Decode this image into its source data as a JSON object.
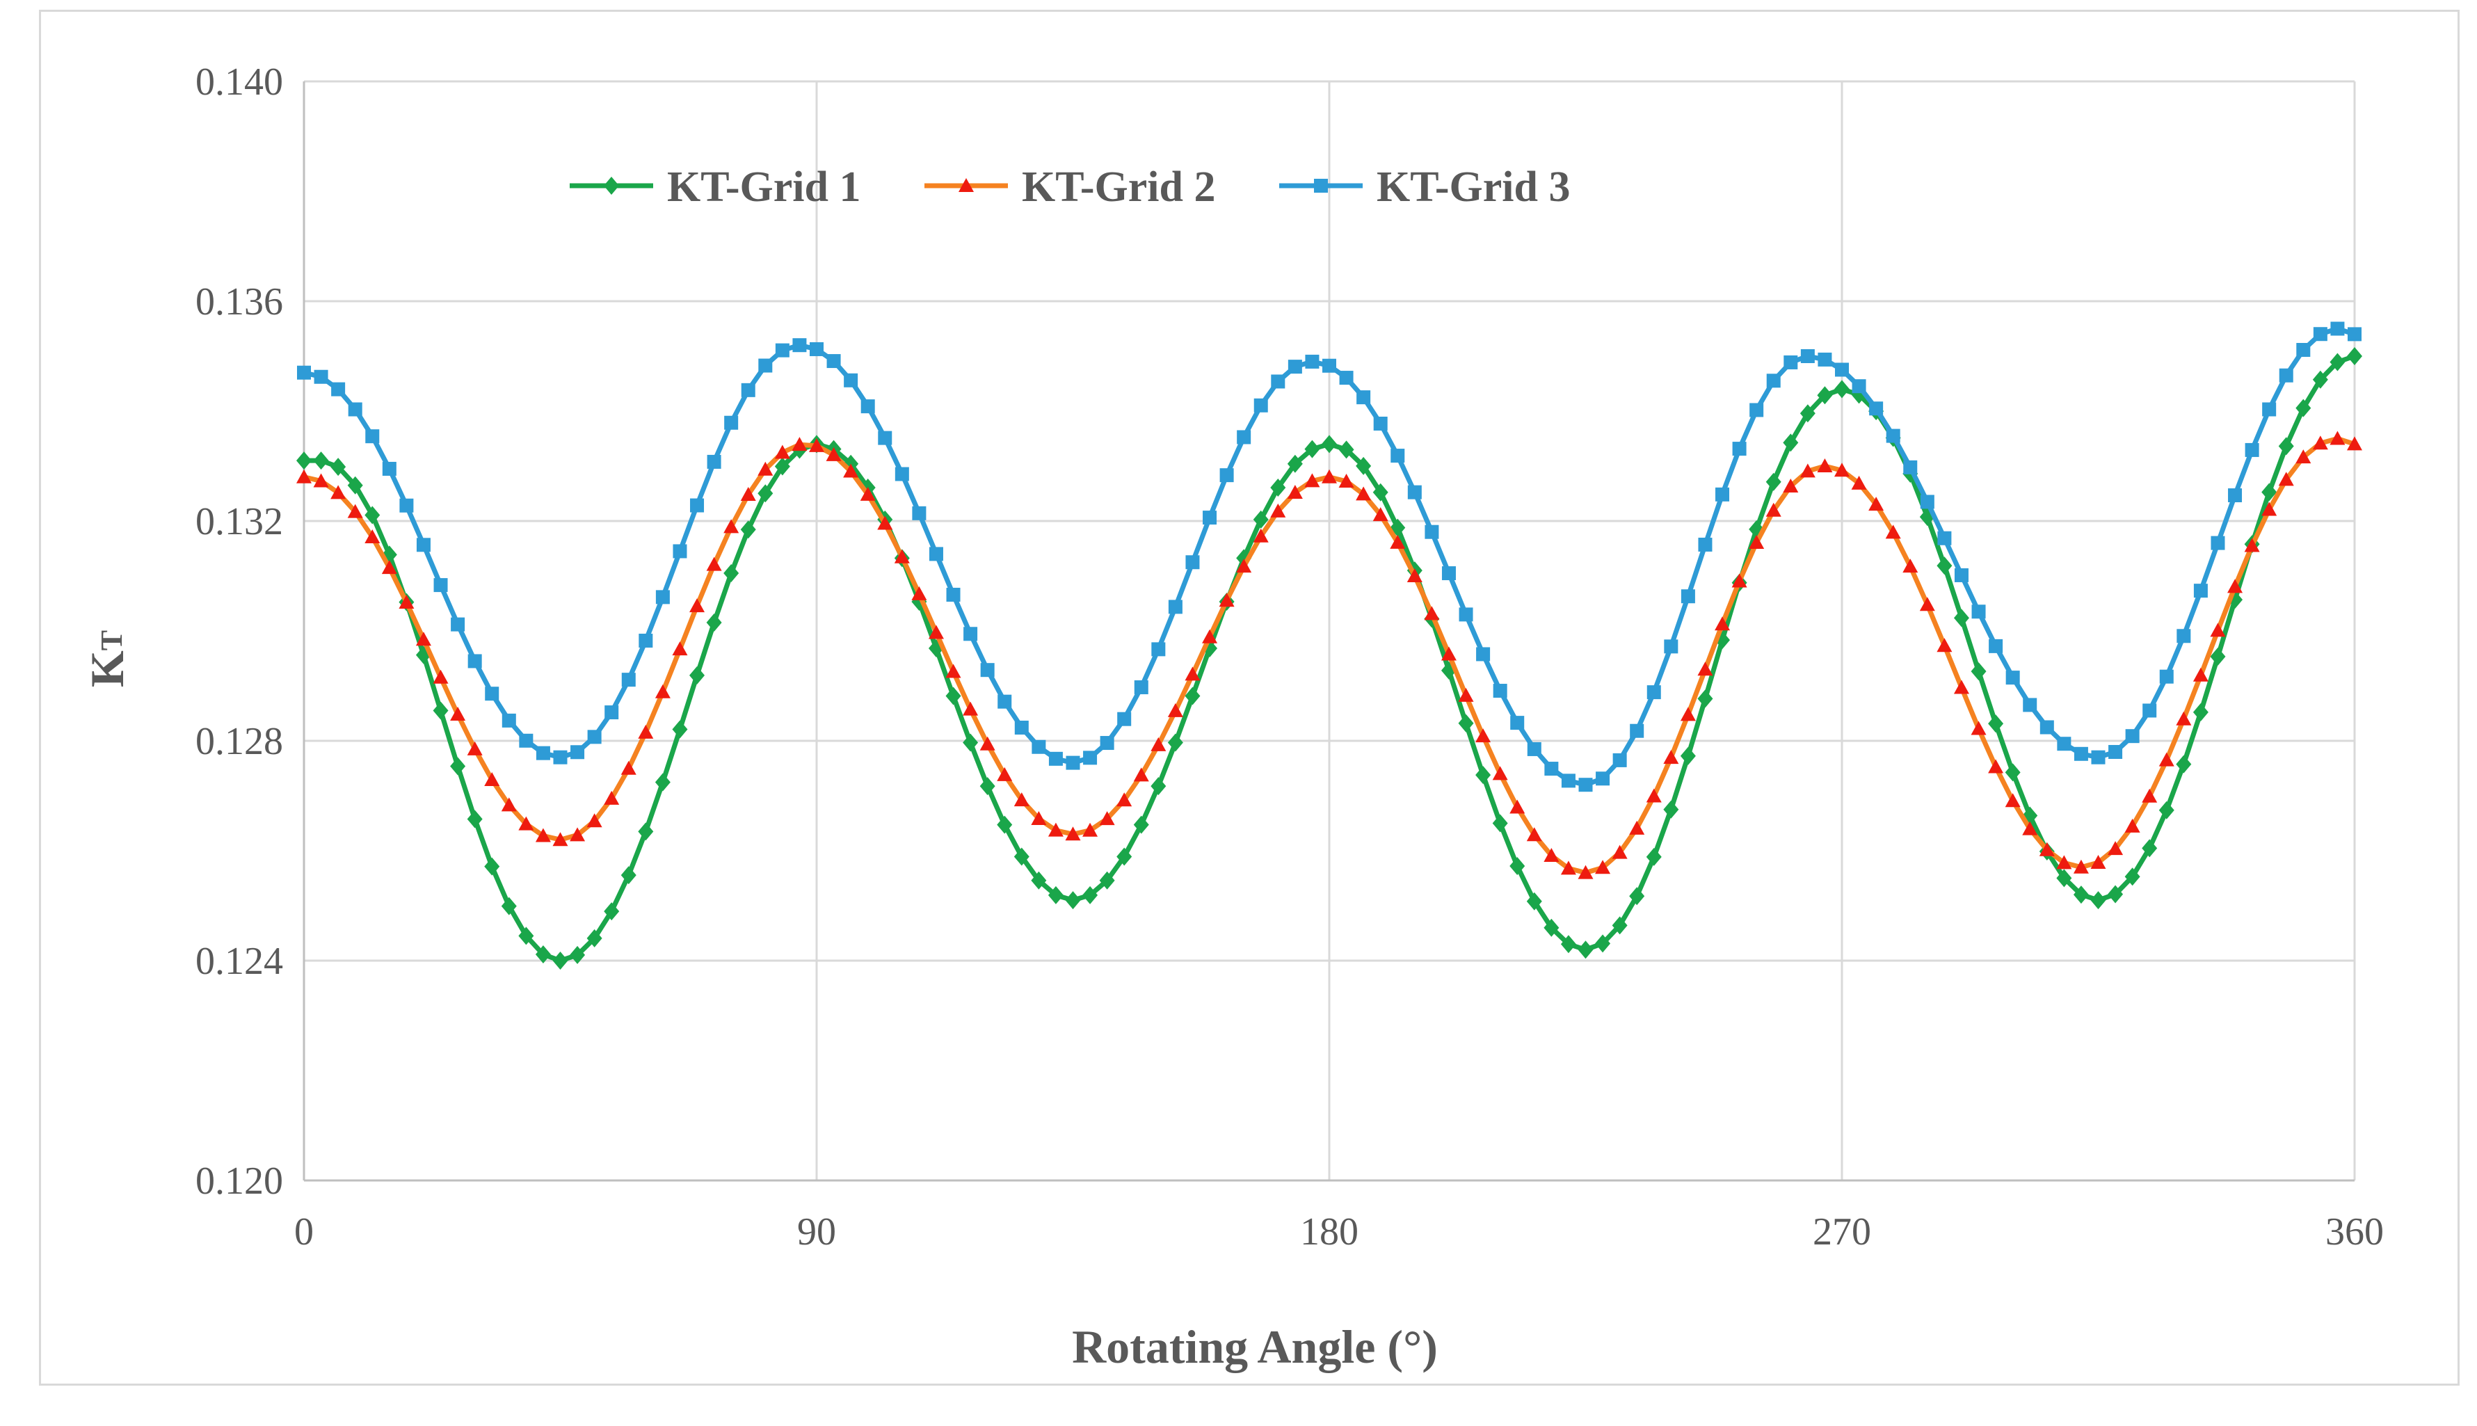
{
  "chart_data": {
    "type": "line",
    "title": "",
    "xlabel": "Rotating Angle (°)",
    "ylabel_main": "K",
    "ylabel_sub": "T",
    "xlim": [
      0,
      360
    ],
    "ylim": [
      0.12,
      0.14
    ],
    "xticks": [
      0,
      90,
      180,
      270,
      360
    ],
    "xtick_labels": [
      "0",
      "90",
      "180",
      "270",
      "360"
    ],
    "yticks": [
      0.12,
      0.124,
      0.128,
      0.132,
      0.136,
      0.14
    ],
    "ytick_labels": [
      "0.120",
      "0.124",
      "0.128",
      "0.132",
      "0.136",
      "0.140"
    ],
    "grid": true,
    "legend_position": "top-left",
    "series": [
      {
        "name": "KT-Grid 1",
        "color": "#1aa64a",
        "marker": "diamond",
        "step": 3,
        "keypoints": [
          [
            0,
            0.1331
          ],
          [
            3,
            0.1331
          ],
          [
            45,
            0.124
          ],
          [
            90,
            0.1334
          ],
          [
            135,
            0.1251
          ],
          [
            180,
            0.1334
          ],
          [
            225,
            0.1242
          ],
          [
            270,
            0.1344
          ],
          [
            315,
            0.1251
          ],
          [
            360,
            0.135
          ]
        ]
      },
      {
        "name": "KT-Grid 2",
        "color": "#ee1b0f",
        "line_color": "#f58220",
        "marker": "triangle",
        "step": 3,
        "keypoints": [
          [
            0,
            0.1328
          ],
          [
            45,
            0.1262
          ],
          [
            88,
            0.1334
          ],
          [
            135,
            0.1263
          ],
          [
            180,
            0.1328
          ],
          [
            225,
            0.1256
          ],
          [
            267,
            0.133
          ],
          [
            312,
            0.1257
          ],
          [
            357,
            0.1335
          ],
          [
            360,
            0.1334
          ]
        ]
      },
      {
        "name": "KT-Grid 3",
        "color": "#2e9bd6",
        "marker": "square",
        "step": 3,
        "keypoints": [
          [
            0,
            0.1347
          ],
          [
            45,
            0.1277
          ],
          [
            87,
            0.1352
          ],
          [
            135,
            0.1276
          ],
          [
            177,
            0.1349
          ],
          [
            225,
            0.1272
          ],
          [
            264,
            0.135
          ],
          [
            315,
            0.1277
          ],
          [
            357,
            0.1355
          ],
          [
            360,
            0.1354
          ]
        ]
      }
    ]
  }
}
